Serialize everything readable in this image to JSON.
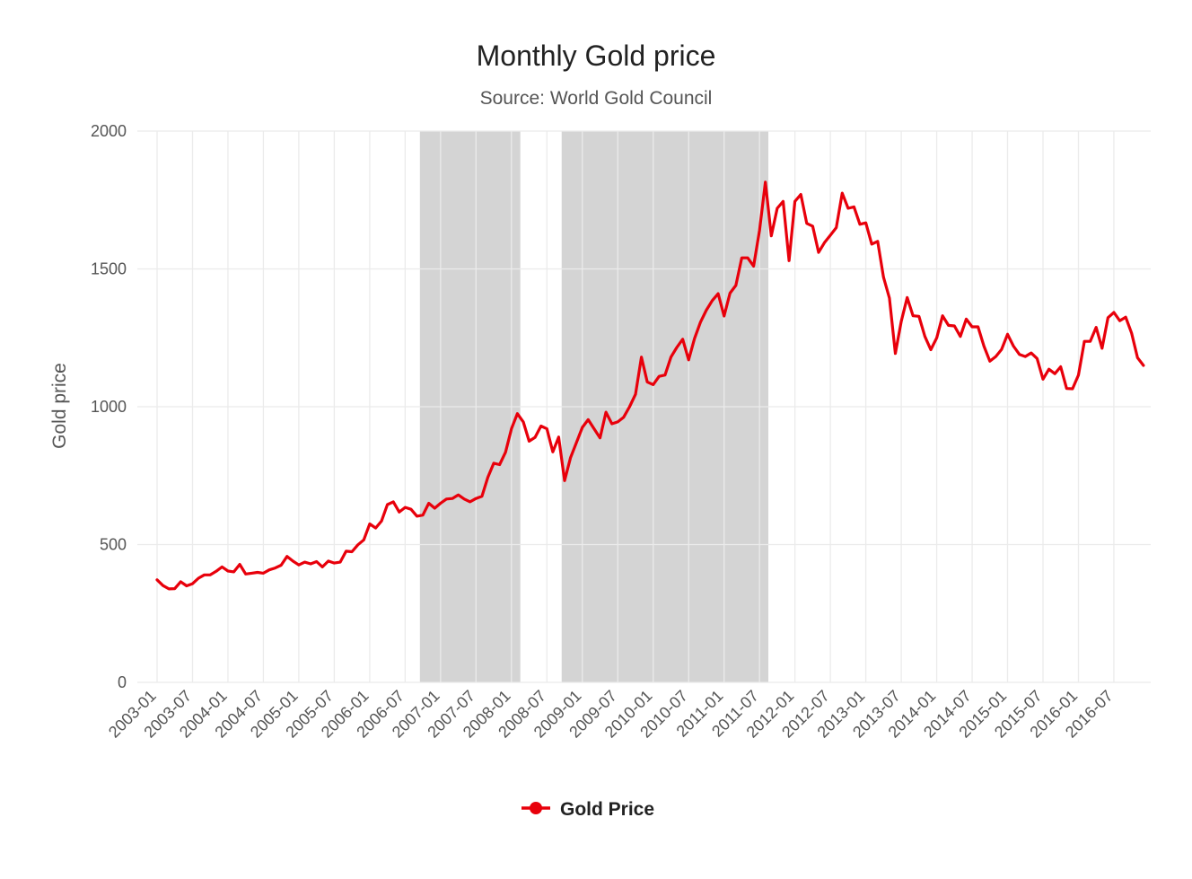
{
  "chart_data": {
    "type": "line",
    "title": "Monthly Gold price",
    "subtitle": "Source: World Gold Council",
    "ylabel": "Gold price",
    "xlabel": "",
    "ylim": [
      0,
      2000
    ],
    "yticks": [
      0,
      500,
      1000,
      1500,
      2000
    ],
    "xticks": [
      "2003-01",
      "2003-07",
      "2004-01",
      "2004-07",
      "2005-01",
      "2005-07",
      "2006-01",
      "2006-07",
      "2007-01",
      "2007-07",
      "2008-01",
      "2008-07",
      "2009-01",
      "2009-07",
      "2010-01",
      "2010-07",
      "2011-01",
      "2011-07",
      "2012-01",
      "2012-07",
      "2013-01",
      "2013-07",
      "2014-01",
      "2014-07",
      "2015-01",
      "2015-07",
      "2016-01",
      "2016-07"
    ],
    "grid": true,
    "legend_position": "bottom",
    "shaded_periods": [
      {
        "start": "2006-10",
        "end": "2008-02"
      },
      {
        "start": "2008-10",
        "end": "2011-08"
      }
    ],
    "shade_color": "#d4d4d4",
    "series": [
      {
        "name": "Gold Price",
        "color": "#e8000b",
        "x": [
          "2003-01",
          "2003-02",
          "2003-03",
          "2003-04",
          "2003-05",
          "2003-06",
          "2003-07",
          "2003-08",
          "2003-09",
          "2003-10",
          "2003-11",
          "2003-12",
          "2004-01",
          "2004-02",
          "2004-03",
          "2004-04",
          "2004-05",
          "2004-06",
          "2004-07",
          "2004-08",
          "2004-09",
          "2004-10",
          "2004-11",
          "2004-12",
          "2005-01",
          "2005-02",
          "2005-03",
          "2005-04",
          "2005-05",
          "2005-06",
          "2005-07",
          "2005-08",
          "2005-09",
          "2005-10",
          "2005-11",
          "2005-12",
          "2006-01",
          "2006-02",
          "2006-03",
          "2006-04",
          "2006-05",
          "2006-06",
          "2006-07",
          "2006-08",
          "2006-09",
          "2006-10",
          "2006-11",
          "2006-12",
          "2007-01",
          "2007-02",
          "2007-03",
          "2007-04",
          "2007-05",
          "2007-06",
          "2007-07",
          "2007-08",
          "2007-09",
          "2007-10",
          "2007-11",
          "2007-12",
          "2008-01",
          "2008-02",
          "2008-03",
          "2008-04",
          "2008-05",
          "2008-06",
          "2008-07",
          "2008-08",
          "2008-09",
          "2008-10",
          "2008-11",
          "2008-12",
          "2009-01",
          "2009-02",
          "2009-03",
          "2009-04",
          "2009-05",
          "2009-06",
          "2009-07",
          "2009-08",
          "2009-09",
          "2009-10",
          "2009-11",
          "2009-12",
          "2010-01",
          "2010-02",
          "2010-03",
          "2010-04",
          "2010-05",
          "2010-06",
          "2010-07",
          "2010-08",
          "2010-09",
          "2010-10",
          "2010-11",
          "2010-12",
          "2011-01",
          "2011-02",
          "2011-03",
          "2011-04",
          "2011-05",
          "2011-06",
          "2011-07",
          "2011-08",
          "2011-09",
          "2011-10",
          "2011-11",
          "2011-12",
          "2012-01",
          "2012-02",
          "2012-03",
          "2012-04",
          "2012-05",
          "2012-06",
          "2012-07",
          "2012-08",
          "2012-09",
          "2012-10",
          "2012-11",
          "2012-12",
          "2013-01",
          "2013-02",
          "2013-03",
          "2013-04",
          "2013-05",
          "2013-06",
          "2013-07",
          "2013-08",
          "2013-09",
          "2013-10",
          "2013-11",
          "2013-12",
          "2014-01",
          "2014-02",
          "2014-03",
          "2014-04",
          "2014-05",
          "2014-06",
          "2014-07",
          "2014-08",
          "2014-09",
          "2014-10",
          "2014-11",
          "2014-12",
          "2015-01",
          "2015-02",
          "2015-03",
          "2015-04",
          "2015-05",
          "2015-06",
          "2015-07",
          "2015-08",
          "2015-09",
          "2015-10",
          "2015-11",
          "2015-12",
          "2016-01",
          "2016-02",
          "2016-03",
          "2016-04",
          "2016-05",
          "2016-06",
          "2016-07",
          "2016-08",
          "2016-09",
          "2016-10",
          "2016-11",
          "2016-12"
        ],
        "values": [
          372,
          351,
          339,
          340,
          365,
          350,
          358,
          378,
          390,
          390,
          403,
          419,
          404,
          401,
          428,
          393,
          396,
          399,
          396,
          408,
          415,
          425,
          457,
          440,
          426,
          436,
          430,
          438,
          419,
          440,
          433,
          436,
          476,
          474,
          499,
          517,
          575,
          560,
          585,
          645,
          655,
          618,
          635,
          628,
          603,
          607,
          650,
          632,
          650,
          665,
          667,
          680,
          665,
          655,
          667,
          675,
          744,
          795,
          790,
          835,
          920,
          975,
          945,
          875,
          889,
          930,
          920,
          836,
          890,
          732,
          815,
          870,
          925,
          953,
          920,
          887,
          980,
          938,
          945,
          962,
          1000,
          1045,
          1180,
          1090,
          1080,
          1110,
          1115,
          1180,
          1215,
          1245,
          1170,
          1248,
          1307,
          1350,
          1385,
          1410,
          1329,
          1412,
          1440,
          1540,
          1540,
          1510,
          1640,
          1815,
          1620,
          1720,
          1745,
          1530,
          1745,
          1770,
          1665,
          1655,
          1560,
          1595,
          1622,
          1650,
          1775,
          1720,
          1725,
          1662,
          1667,
          1590,
          1600,
          1470,
          1394,
          1193,
          1310,
          1396,
          1330,
          1328,
          1255,
          1207,
          1250,
          1330,
          1295,
          1293,
          1255,
          1318,
          1290,
          1290,
          1220,
          1165,
          1182,
          1208,
          1263,
          1220,
          1190,
          1182,
          1195,
          1175,
          1100,
          1136,
          1120,
          1145,
          1066,
          1065,
          1115,
          1237,
          1237,
          1288,
          1212,
          1323,
          1342,
          1312,
          1325,
          1267,
          1178,
          1150
        ]
      }
    ]
  }
}
